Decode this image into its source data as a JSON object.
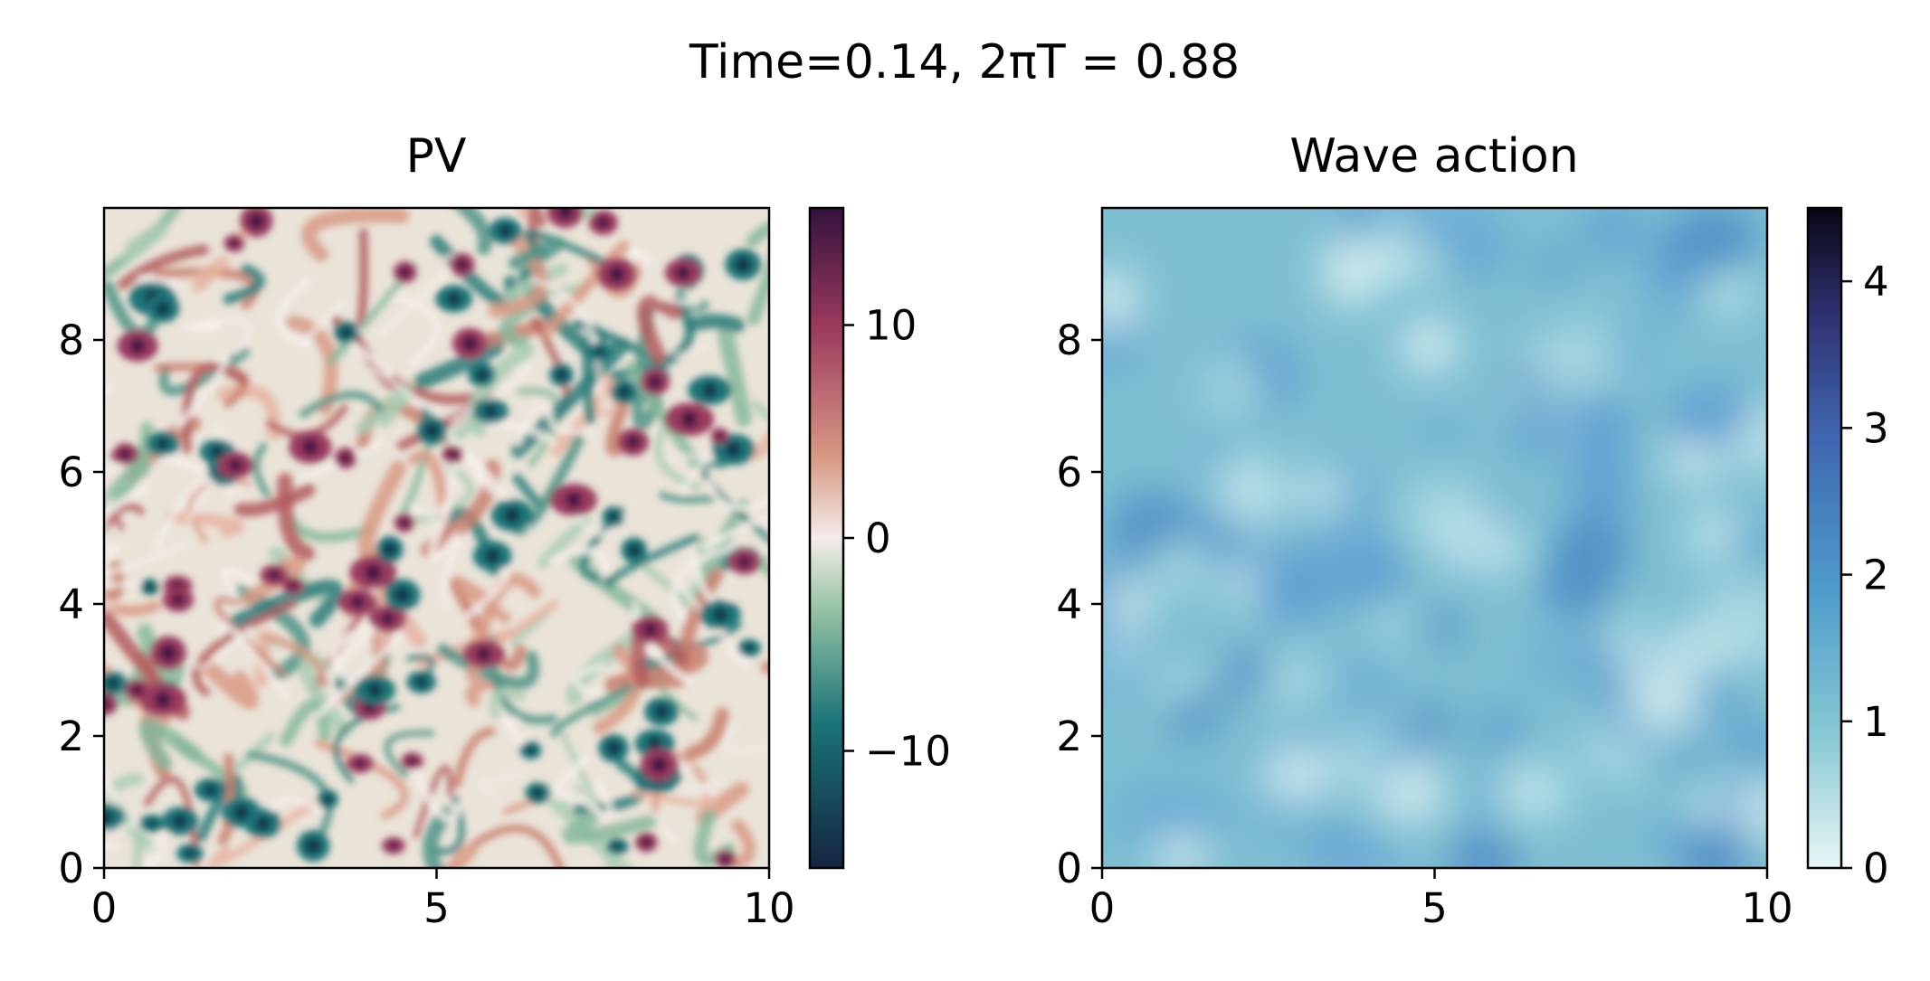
{
  "chart_data": [
    {
      "type": "heatmap",
      "title": "PV",
      "suptitle": "Time=0.14, 2πT = 0.88",
      "xlim": [
        0,
        10
      ],
      "ylim": [
        0,
        10
      ],
      "xticks": [
        0,
        5,
        10
      ],
      "yticks": [
        0,
        2,
        4,
        6,
        8
      ],
      "xtick_labels": [
        "0",
        "5",
        "10"
      ],
      "ytick_labels": [
        "0",
        "2",
        "4",
        "6",
        "8"
      ],
      "colorbar": {
        "range": [
          -15.5,
          15.5
        ],
        "ticks": [
          10,
          0,
          -10
        ],
        "tick_labels": [
          "10",
          "0",
          "−10"
        ],
        "colormap": "diverging teal-white-red (curl)",
        "colors": [
          "#15253f",
          "#1a7478",
          "#9cc6a8",
          "#f4ecea",
          "#d99a85",
          "#9a3a5e",
          "#35113d"
        ]
      },
      "field": "turbulent vorticity field with many small coherent vortices of both signs"
    },
    {
      "type": "heatmap",
      "title": "Wave action",
      "xlim": [
        0,
        10
      ],
      "ylim": [
        0,
        10
      ],
      "xticks": [
        0,
        5,
        10
      ],
      "yticks": [
        0,
        2,
        4,
        6,
        8
      ],
      "xtick_labels": [
        "0",
        "5",
        "10"
      ],
      "ytick_labels": [
        "0",
        "2",
        "4",
        "6",
        "8"
      ],
      "colorbar": {
        "range": [
          0,
          4.5
        ],
        "ticks": [
          0,
          1,
          2,
          3,
          4
        ],
        "tick_labels": [
          "0",
          "1",
          "2",
          "3",
          "4"
        ],
        "colormap": "sequential light-cyan to dark navy (ice)",
        "colors": [
          "#e8f6f6",
          "#88c9d3",
          "#4e9ccb",
          "#3f67b1",
          "#2e2e6b",
          "#070714"
        ]
      },
      "field": "smooth blobby field with values mostly between about 0.7 and 2.3"
    }
  ]
}
